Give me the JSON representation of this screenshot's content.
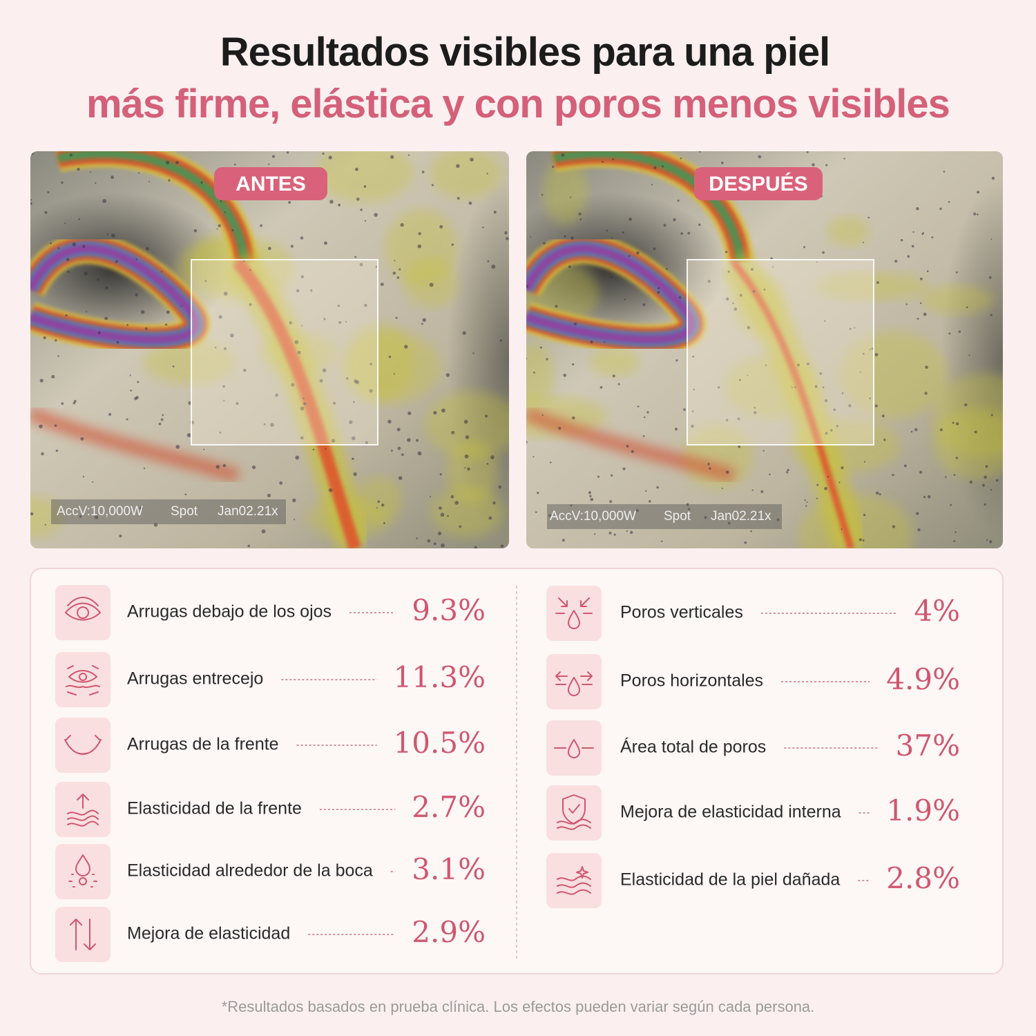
{
  "header": {
    "title": "Resultados visibles para una piel",
    "subtitle": "más firme, elástica y con poros menos visibles"
  },
  "images": [
    {
      "label": "ANTES",
      "caption": [
        "AccV:10,000W",
        "Spot",
        "Jan02.21x"
      ]
    },
    {
      "label": "DESPUÉS",
      "caption": [
        "AccV:10,000W",
        "Spot",
        "Jan02.21x"
      ]
    }
  ],
  "stats": {
    "left": [
      {
        "label": "Arrugas debajo de los ojos",
        "value": "9.3%"
      },
      {
        "label": "Arrugas entrecejo",
        "value": "11.3%"
      },
      {
        "label": "Arrugas de la frente",
        "value": "10.5%"
      },
      {
        "label": "Elasticidad de la frente",
        "value": "2.7%"
      },
      {
        "label": "Elasticidad alrededor de la boca",
        "value": "3.1%"
      },
      {
        "label": "Mejora de elasticidad",
        "value": "2.9%"
      }
    ],
    "right": [
      {
        "label": "Poros verticales",
        "value": "4%"
      },
      {
        "label": "Poros horizontales",
        "value": "4.9%"
      },
      {
        "label": "Área total de poros",
        "value": "37%"
      },
      {
        "label": "Mejora de elasticidad interna",
        "value": "1.9%"
      },
      {
        "label": "Elasticidad de la piel dañada",
        "value": "2.8%"
      }
    ]
  },
  "footnote": "*Resultados basados en prueba clínica. Los efectos pueden variar según cada persona."
}
